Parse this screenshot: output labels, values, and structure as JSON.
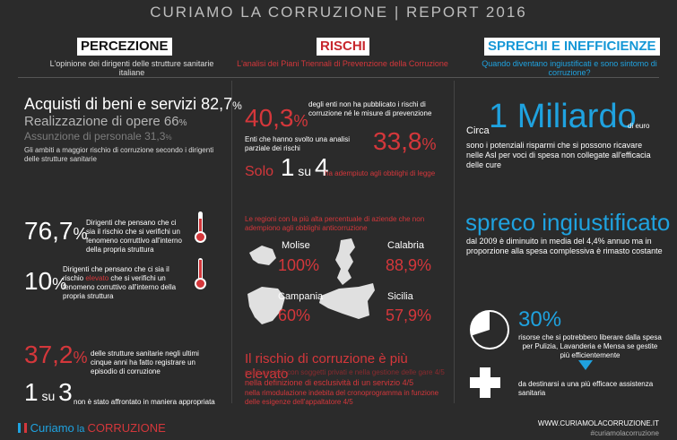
{
  "header": {
    "title": "CURIAMO LA CORRUZIONE | REPORT 2016"
  },
  "percezione": {
    "title": "PERCEZIONE",
    "subtitle": "L'opinione dei dirigenti delle strutture sanitarie italiane",
    "item1": "Acquisti di beni e servizi 82,7",
    "item1_unit": "%",
    "item2": "Realizzazione di opere 66",
    "item2_unit": "%",
    "item3": "Assunzione di personale 31,3",
    "item3_unit": "%",
    "ambiti_note": "Gli ambiti a maggior rischio di corruzione secondo i dirigenti delle strutture sanitarie",
    "stat1_value": "76,7",
    "stat1_unit": "%",
    "stat1_text": "Dirigenti che pensano che ci sia il rischio che si verifichi un fenomeno corruttivo all'interno della propria struttura",
    "stat2_value": "10",
    "stat2_unit": "%",
    "stat2_text_a": "Dirigenti che pensano che ci sia il rischio ",
    "stat2_text_b": "elevato",
    "stat2_text_c": " che si verifichi un fenomeno corruttivo all'interno della propria struttura",
    "stat3_value": "37,2",
    "stat3_unit": "%",
    "stat3_text": "delle strutture sanitarie negli ultimi cinque anni ha fatto registrare un episodio di corruzione",
    "stat4_a": "1",
    "stat4_su": "su",
    "stat4_b": "3",
    "stat4_text": "non è stato affrontato in maniera appropriata"
  },
  "rischi": {
    "title": "RISCHI",
    "subtitle": "L'analisi dei Piani Triennali di Prevenzione della Corruzione",
    "stat1_value": "40,3",
    "stat1_unit": "%",
    "stat1_text": "degli enti non ha pubblicato i rischi di corruzione né le misure di prevenzione",
    "stat2_text": "Enti che hanno svolto una analisi parziale dei rischi",
    "stat2_value": "33,8",
    "stat2_unit": "%",
    "stat3_solo": "Solo",
    "stat3_a": "1",
    "stat3_su": "su",
    "stat3_b": "4",
    "stat3_text": "ha adempiuto agli obblighi di legge",
    "regions_note": "Le regioni con la più alta percentuale di aziende che non adempiono agli obblighi anticorruzione",
    "regions": [
      {
        "name": "Molise",
        "value": "100%"
      },
      {
        "name": "Calabria",
        "value": "88,9%"
      },
      {
        "name": "Campania",
        "value": "60%"
      },
      {
        "name": "Sicilia",
        "value": "57,9%"
      }
    ],
    "bottom_title": "Il rischio di corruzione è più elevato",
    "bottom_line1": "negli accordi con soggetti privati e nella gestione delle gare 4/5",
    "bottom_line2": "nella definizione di esclusività di un servizio 4/5",
    "bottom_line3": "nella rimodulazione indebita del cronoprogramma in funzione delle esigenze dell'appaltatore 4/5"
  },
  "sprechi": {
    "title": "SPRECHI E INEFFICIENZE",
    "subtitle": "Quando diventano ingiustificati e sono sintomo di corruzione?",
    "circa": "Circa",
    "miliardo": "1 Miliardo",
    "di_euro": "di euro",
    "miliardo_text": "sono i potenziali risparmi che si possono ricavare nelle Asl per voci di spesa non collegate all'efficacia delle cure",
    "spreco_title": "spreco ingiustificato",
    "spreco_text": "dal 2009 è diminuito in media del 4,4% annuo ma in proporzione alla spesa complessiva è rimasto costante",
    "pct_value": "30%",
    "pct_text": "risorse che si potrebbero liberare dalla spesa per Pulizia, Lavanderia e Mensa se gestite più efficientemente",
    "pie_fraction": 0.3,
    "assist_text": "da destinarsi a una più efficace assistenza sanitaria"
  },
  "footer": {
    "logo_a": "Curiamo",
    "logo_b": " la ",
    "logo_c": "CORRUZIONE",
    "url": "WWW.CURIAMOLACORRUZIONE.IT",
    "hashtag": "#curiamolacorruzione"
  },
  "colors": {
    "red": "#d4373b",
    "blue": "#1fa2df",
    "bg": "#2b2b2b"
  }
}
